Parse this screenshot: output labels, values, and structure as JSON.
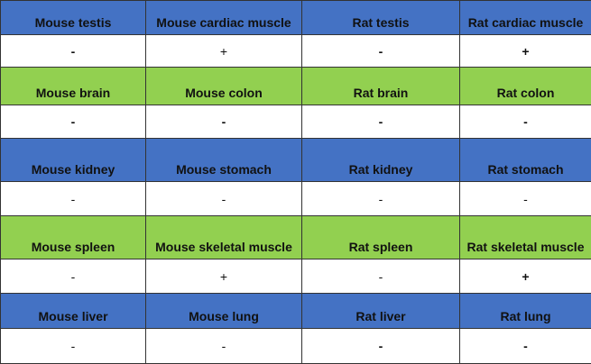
{
  "colors": {
    "blue_header": "#4472C4",
    "green_header": "#92D050"
  },
  "groups": [
    {
      "header_color": "blue",
      "labels": [
        "Mouse testis",
        "Mouse cardiac muscle",
        "Rat testis",
        "Rat cardiac muscle"
      ],
      "values": [
        "-",
        "+",
        "-",
        "+"
      ]
    },
    {
      "header_color": "green",
      "labels": [
        "Mouse brain",
        "Mouse colon",
        "Rat brain",
        "Rat colon"
      ],
      "values": [
        "-",
        "-",
        "-",
        "-"
      ]
    },
    {
      "header_color": "blue",
      "labels": [
        "Mouse kidney",
        "Mouse stomach",
        "Rat kidney",
        "Rat stomach"
      ],
      "values": [
        "-",
        "-",
        "-",
        "-"
      ]
    },
    {
      "header_color": "green",
      "labels": [
        "Mouse spleen",
        "Mouse skeletal muscle",
        "Rat spleen",
        "Rat skeletal muscle"
      ],
      "values": [
        "-",
        "+",
        "-",
        "+"
      ]
    },
    {
      "header_color": "blue",
      "labels": [
        "Mouse liver",
        "Mouse lung",
        "Rat liver",
        "Rat lung"
      ],
      "values": [
        "-",
        "-",
        "-",
        "-"
      ]
    }
  ]
}
